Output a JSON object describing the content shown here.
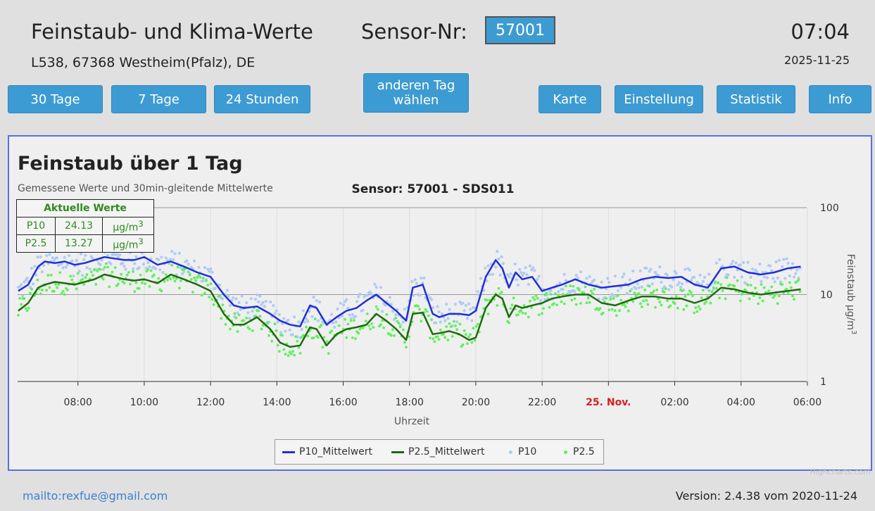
{
  "header": {
    "title": "Feinstaub- und Klima-Werte",
    "sensor_label": "Sensor-Nr:",
    "sensor_value": "57001",
    "address": "L538, 67368 Westheim(Pfalz), DE",
    "clock": "07:04",
    "date": "2025-11-25"
  },
  "buttons": {
    "days30": "30 Tage",
    "days7": "7 Tage",
    "hours24": "24 Stunden",
    "other_day_line1": "anderen Tag",
    "other_day_line2": "wählen",
    "map": "Karte",
    "settings": "Einstellung",
    "statistics": "Statistik",
    "info": "Info"
  },
  "current_values": {
    "heading": "Aktuelle Werte",
    "rows": [
      {
        "name": "P10",
        "value": "24.13",
        "unit": "µg/m",
        "sup": "3"
      },
      {
        "name": "P2.5",
        "value": "13.27",
        "unit": "µg/m",
        "sup": "3"
      }
    ]
  },
  "chart_data": {
    "type": "line",
    "title": "Feinstaub über 1 Tag",
    "subtitle_left": "Gemessene Werte und 30min-gleitende Mittelwerte",
    "subtitle_center": "Sensor: 57001 - SDS011",
    "xlabel": "Uhrzeit",
    "ylabel": "Feinstaub µg/m",
    "ylabel_sup": "3",
    "y_scale": "log",
    "ylim": [
      1,
      100
    ],
    "y_ticks": [
      "1",
      "10",
      "100"
    ],
    "x_ticks": [
      "08:00",
      "10:00",
      "12:00",
      "14:00",
      "16:00",
      "18:00",
      "20:00",
      "22:00",
      "25. Nov.",
      "02:00",
      "04:00",
      "06:00"
    ],
    "x_ticks_highlight": "25. Nov.",
    "grid": true,
    "legend_position": "bottom",
    "colors": {
      "p10_mean": "#1f2fdc",
      "p25_mean": "#1e6b10",
      "p10": "#aecbf5",
      "p25": "#5ef05a",
      "highlight_tick": "#d42020"
    },
    "series": [
      {
        "name": "P10_Mittelwert",
        "x_hours": [
          6.2,
          6.5,
          6.8,
          7.0,
          7.3,
          7.6,
          7.9,
          8.2,
          8.5,
          8.8,
          9.1,
          9.4,
          9.7,
          10.0,
          10.4,
          10.8,
          11.2,
          11.6,
          12.0,
          12.4,
          12.7,
          13.0,
          13.4,
          13.8,
          14.1,
          14.4,
          14.7,
          15.0,
          15.2,
          15.5,
          15.8,
          16.1,
          16.4,
          16.7,
          17.0,
          17.3,
          17.6,
          17.9,
          18.1,
          18.4,
          18.7,
          18.9,
          19.2,
          19.5,
          19.8,
          20.0,
          20.3,
          20.6,
          20.8,
          21.0,
          21.2,
          21.4,
          21.7,
          22.0,
          22.3,
          22.6,
          23.0,
          23.4,
          23.8,
          24.2,
          24.6,
          25.0,
          25.4,
          25.8,
          26.2,
          26.6,
          27.0,
          27.4,
          27.8,
          28.2,
          28.6,
          29.0,
          29.4,
          29.8
        ],
        "values": [
          11,
          13,
          21,
          24,
          23,
          24,
          22,
          23,
          25,
          27,
          26,
          25,
          25,
          27,
          22,
          24,
          21,
          18,
          16,
          10,
          7.5,
          7,
          7.3,
          6,
          5,
          4.5,
          4.3,
          7.5,
          7,
          4.5,
          5.5,
          6.5,
          7,
          8.5,
          10,
          8,
          6.5,
          5,
          12,
          13,
          6,
          5.5,
          6,
          6,
          5.8,
          6.5,
          16,
          25,
          20,
          12,
          18,
          15,
          16,
          11,
          12,
          13,
          15,
          13,
          12,
          12.5,
          13,
          15,
          16,
          15.5,
          16,
          13,
          12,
          20,
          21,
          18,
          17,
          18,
          20,
          21
        ]
      },
      {
        "name": "P2.5_Mittelwert",
        "x_hours": [
          6.2,
          6.5,
          6.8,
          7.0,
          7.3,
          7.6,
          7.9,
          8.2,
          8.5,
          8.8,
          9.1,
          9.4,
          9.7,
          10.0,
          10.4,
          10.8,
          11.2,
          11.6,
          12.0,
          12.4,
          12.7,
          13.0,
          13.4,
          13.8,
          14.1,
          14.4,
          14.7,
          15.0,
          15.2,
          15.5,
          15.8,
          16.1,
          16.4,
          16.7,
          17.0,
          17.3,
          17.6,
          17.9,
          18.1,
          18.4,
          18.7,
          18.9,
          19.2,
          19.5,
          19.8,
          20.0,
          20.3,
          20.6,
          20.8,
          21.0,
          21.2,
          21.4,
          21.7,
          22.0,
          22.3,
          22.6,
          23.0,
          23.4,
          23.8,
          24.2,
          24.6,
          25.0,
          25.4,
          25.8,
          26.2,
          26.6,
          27.0,
          27.4,
          27.8,
          28.2,
          28.6,
          29.0,
          29.4,
          29.8
        ],
        "values": [
          6.5,
          8,
          12,
          13,
          14,
          13.5,
          13,
          14,
          15,
          17,
          16,
          15,
          14.5,
          15,
          13.5,
          17,
          15,
          13,
          11,
          6,
          4.5,
          4.5,
          5.5,
          4,
          2.8,
          2.5,
          2.6,
          4.2,
          4,
          2.6,
          3.5,
          4,
          4.2,
          4.5,
          6,
          5,
          4,
          3,
          6,
          6.2,
          3.5,
          3.6,
          3.8,
          3.5,
          3,
          3.2,
          7,
          10,
          9,
          5.5,
          7.5,
          7,
          7.5,
          8,
          9,
          9.5,
          10,
          10,
          8,
          7.5,
          8.5,
          9.5,
          9.5,
          9,
          9,
          8,
          9,
          12,
          11.5,
          10.5,
          10,
          10.5,
          11,
          11.5
        ]
      },
      {
        "name": "P10"
      },
      {
        "name": "P2.5"
      }
    ]
  },
  "credits": "Highcharts.com",
  "footer": {
    "mailto": "mailto:rexfue@gmail.com",
    "version": "Version: 2.4.38 vom 2020-11-24"
  }
}
